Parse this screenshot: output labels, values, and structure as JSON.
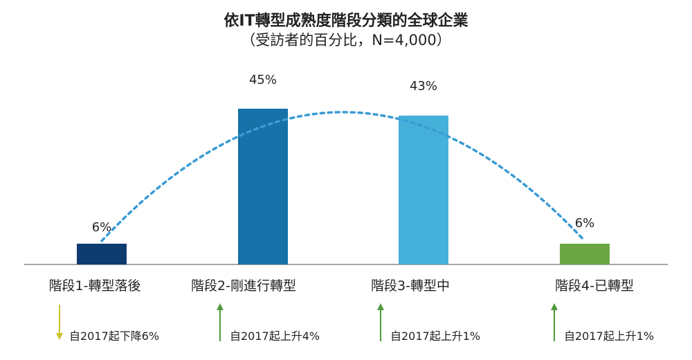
{
  "chart_data": {
    "type": "bar",
    "title": "依IT轉型成熟度階段分類的全球企業",
    "subtitle": "（受訪者的百分比，N=4,000）",
    "categories": [
      "階段1-轉型落後",
      "階段2-剛進行轉型",
      "階段3-轉型中",
      "階段4-已轉型"
    ],
    "values": [
      6,
      45,
      43,
      6
    ],
    "value_labels": [
      "6%",
      "45%",
      "43%",
      "6%"
    ],
    "ylim": [
      0,
      50
    ],
    "bar_colors": [
      "#0d3b6e",
      "#1672a8",
      "#45b0d9",
      "#6ca744"
    ],
    "trend_line_color": "#3a9bd5",
    "changes": [
      {
        "text": "自2017起下降6%",
        "direction": "down",
        "color": "#c9c12a"
      },
      {
        "text": "自2017起上升4%",
        "direction": "up",
        "color": "#4e9a3a"
      },
      {
        "text": "自2017起上升1%",
        "direction": "up",
        "color": "#4e9a3a"
      },
      {
        "text": "自2017起上升1%",
        "direction": "up",
        "color": "#4e9a3a"
      }
    ],
    "grid": false,
    "legend": "none"
  }
}
